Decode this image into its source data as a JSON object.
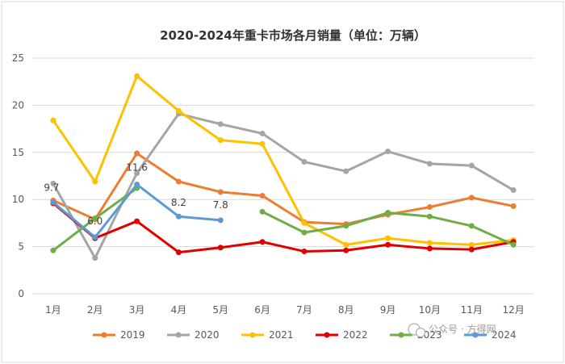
{
  "chart_data": {
    "type": "line",
    "title": "2020-2024年重卡市场各月销量（单位：万辆）",
    "categories": [
      "1月",
      "2月",
      "3月",
      "4月",
      "5月",
      "6月",
      "7月",
      "8月",
      "9月",
      "10月",
      "11月",
      "12月"
    ],
    "ylim": [
      0,
      25
    ],
    "yticks": [
      0,
      5,
      10,
      15,
      20,
      25
    ],
    "grid": "horizontal",
    "legend": "bottom",
    "series": [
      {
        "name": "2019",
        "color": "#ED7D31",
        "values": [
          9.9,
          7.9,
          14.9,
          11.9,
          10.8,
          10.4,
          7.6,
          7.4,
          8.4,
          9.2,
          10.2,
          9.3
        ]
      },
      {
        "name": "2020",
        "color": "#A5A5A5",
        "values": [
          11.7,
          3.8,
          12.8,
          19.1,
          18.0,
          17.0,
          14.0,
          13.0,
          15.1,
          13.8,
          13.6,
          11.0
        ]
      },
      {
        "name": "2021",
        "color": "#FFC000",
        "values": [
          18.4,
          11.9,
          23.1,
          19.4,
          16.3,
          15.9,
          7.5,
          5.2,
          5.9,
          5.4,
          5.2,
          5.7
        ]
      },
      {
        "name": "2022",
        "color": "#E00000",
        "values": [
          9.6,
          5.9,
          7.7,
          4.4,
          4.9,
          5.5,
          4.5,
          4.6,
          5.2,
          4.8,
          4.7,
          5.5
        ]
      },
      {
        "name": "2023",
        "color": "#70AD47",
        "values": [
          4.6,
          8.0,
          11.2,
          null,
          null,
          8.7,
          6.5,
          7.2,
          8.6,
          8.2,
          7.2,
          5.2
        ]
      },
      {
        "name": "2024",
        "color": "#5B9BD5",
        "values": [
          9.7,
          6.0,
          11.6,
          8.2,
          7.8,
          null,
          null,
          null,
          null,
          null,
          null,
          null
        ]
      }
    ],
    "data_labels": [
      {
        "series": "2024",
        "index": 0,
        "text": "9.7"
      },
      {
        "series": "2024",
        "index": 1,
        "text": "6.0"
      },
      {
        "series": "2024",
        "index": 2,
        "text": "11.6"
      },
      {
        "series": "2024",
        "index": 3,
        "text": "8.2"
      },
      {
        "series": "2024",
        "index": 4,
        "text": "7.8"
      }
    ]
  },
  "watermark": "公众号 · 方得网"
}
